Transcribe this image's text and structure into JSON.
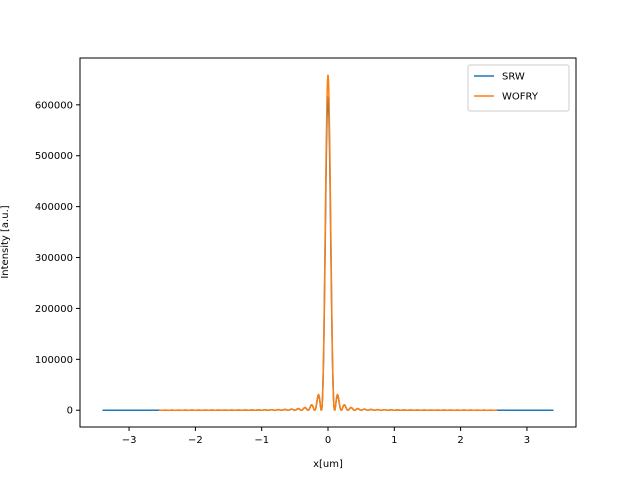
{
  "chart_data": {
    "type": "line",
    "title": "",
    "xlabel": "x[um]",
    "ylabel": "Intensity [a.u.]",
    "xlim": [
      -3.74,
      3.74
    ],
    "ylim": [
      -32950,
      692000
    ],
    "x_ticks": [
      -3,
      -2,
      -1,
      0,
      1,
      2,
      3
    ],
    "x_tick_labels": [
      "−3",
      "−2",
      "−1",
      "0",
      "1",
      "2",
      "3"
    ],
    "y_ticks": [
      0,
      100000,
      200000,
      300000,
      400000,
      500000,
      600000
    ],
    "y_tick_labels": [
      "0",
      "100000",
      "200000",
      "300000",
      "400000",
      "500000",
      "600000"
    ],
    "grid": false,
    "legend_position": "top-right",
    "series": [
      {
        "name": "SRW",
        "color": "#1f77b4",
        "peak": 615000,
        "width_um": 0.1,
        "x_range": [
          -3.4,
          3.4
        ]
      },
      {
        "name": "WOFRY",
        "color": "#ff7f0e",
        "peak": 658000,
        "width_um": 0.1,
        "x_range": [
          -2.55,
          2.55
        ]
      }
    ]
  }
}
